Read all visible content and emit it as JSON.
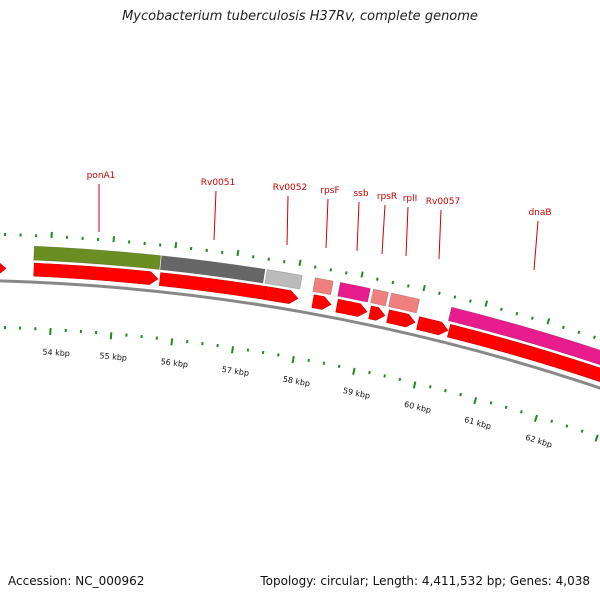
{
  "title": "Mycobacterium tuberculosis H37Rv, complete genome",
  "footer": {
    "accession": "Accession: NC_000962",
    "topology": "Topology: circular; Length: 4,411,532 bp; Genes: 4,038"
  },
  "colors": {
    "forward_strand": "#ff0000",
    "backbone": "#888888",
    "tick": "#228822",
    "label": "#cc0000",
    "green_gene": "#6b8e23",
    "dark_gray_gene": "#666666",
    "light_gray_gene": "#bbbbbb",
    "pink_gene": "#f08080",
    "magenta_gene": "#e81c8c"
  },
  "scale_labels": [
    "54 kbp",
    "55 kbp",
    "56 kbp",
    "57 kbp",
    "58 kbp",
    "59 kbp",
    "60 kbp",
    "61 kbp",
    "62 kbp"
  ],
  "gene_labels": [
    "ponA1",
    "Rv0051",
    "Rv0052",
    "rpsF",
    "ssb",
    "rpsR",
    "rplI",
    "Rv0057",
    "dnaB"
  ]
}
